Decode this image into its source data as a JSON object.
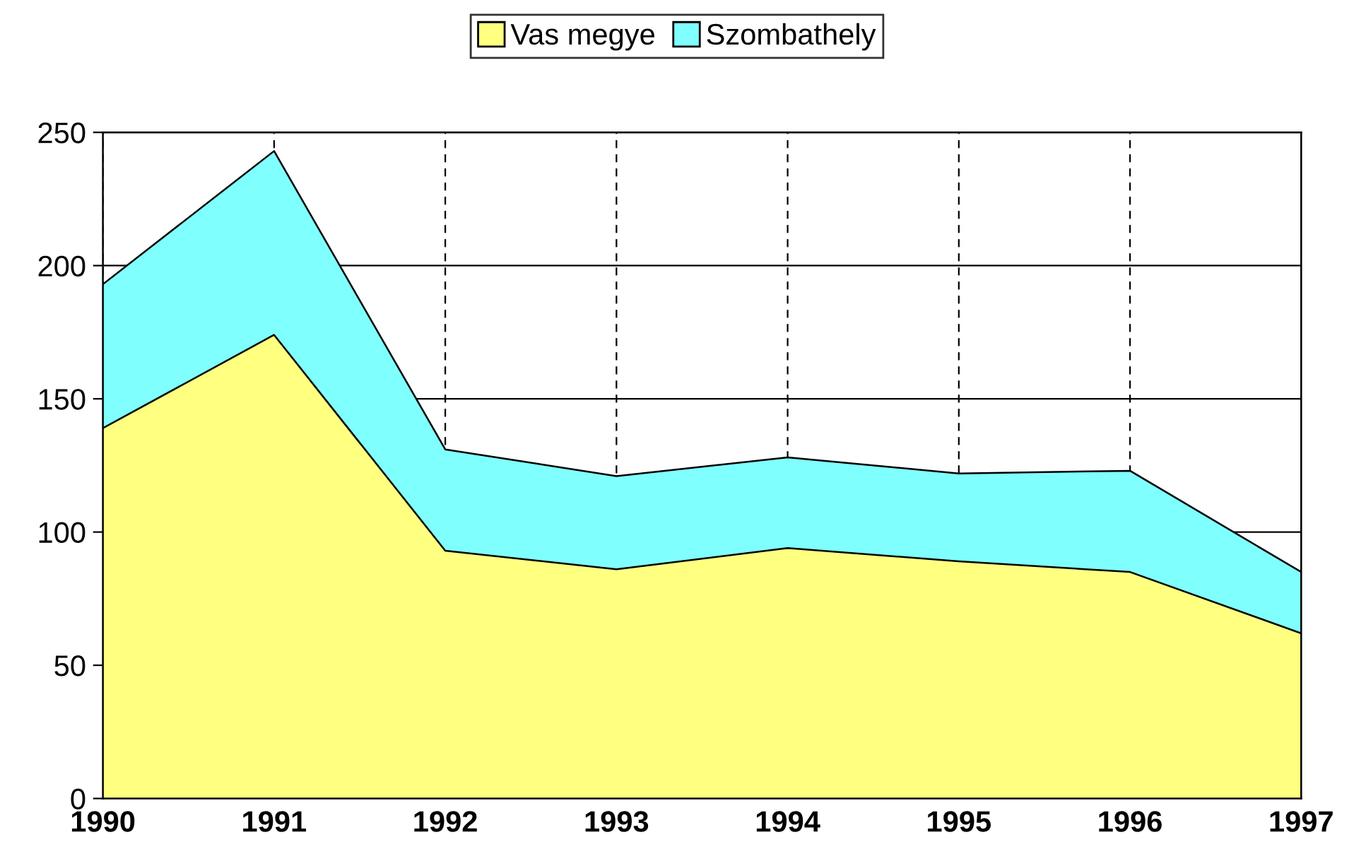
{
  "chart_data": {
    "type": "area",
    "stacked": true,
    "categories": [
      "1990",
      "1991",
      "1992",
      "1993",
      "1994",
      "1995",
      "1996",
      "1997"
    ],
    "series": [
      {
        "name": "Vas megye",
        "color": "#ffff80",
        "values": [
          139,
          174,
          93,
          86,
          94,
          89,
          85,
          62
        ]
      },
      {
        "name": "Szombathely",
        "color": "#80ffff",
        "values": [
          54,
          69,
          38,
          35,
          34,
          33,
          38,
          23
        ]
      }
    ],
    "ylim": [
      0,
      250
    ],
    "yticks": [
      0,
      50,
      100,
      150,
      200,
      250
    ],
    "grid": true,
    "legend": "top"
  }
}
